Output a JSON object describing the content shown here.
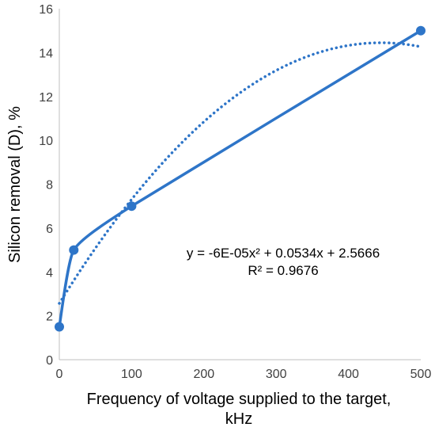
{
  "chart_data": {
    "type": "scatter",
    "title": "",
    "xlabel_lines": [
      "Frequency of voltage supplied to the target,",
      "kHz"
    ],
    "ylabel": "Silicon removal (D), %",
    "xlim": [
      0,
      500
    ],
    "ylim": [
      0,
      16
    ],
    "xticks": [
      0,
      100,
      200,
      300,
      400,
      500
    ],
    "yticks": [
      0,
      2,
      4,
      6,
      8,
      10,
      12,
      14,
      16
    ],
    "grid": false,
    "legend": "none",
    "series": [
      {
        "points": [
          {
            "x": 0,
            "y": 1.5
          },
          {
            "x": 20,
            "y": 5
          },
          {
            "x": 100,
            "y": 7
          },
          {
            "x": 500,
            "y": 15
          }
        ],
        "line": "smoothed",
        "color": "#2E75C8"
      }
    ],
    "trendline": {
      "type": "polynomial-2",
      "style": "dotted",
      "color": "#2E75C8",
      "coefficients": {
        "a": -6e-05,
        "b": 0.0534,
        "c": 2.5666
      },
      "x_range": [
        0,
        500
      ],
      "equation": "y = -6E-05x² + 0.0534x + 2.5666",
      "r_squared": "R² = 0.9676"
    }
  }
}
